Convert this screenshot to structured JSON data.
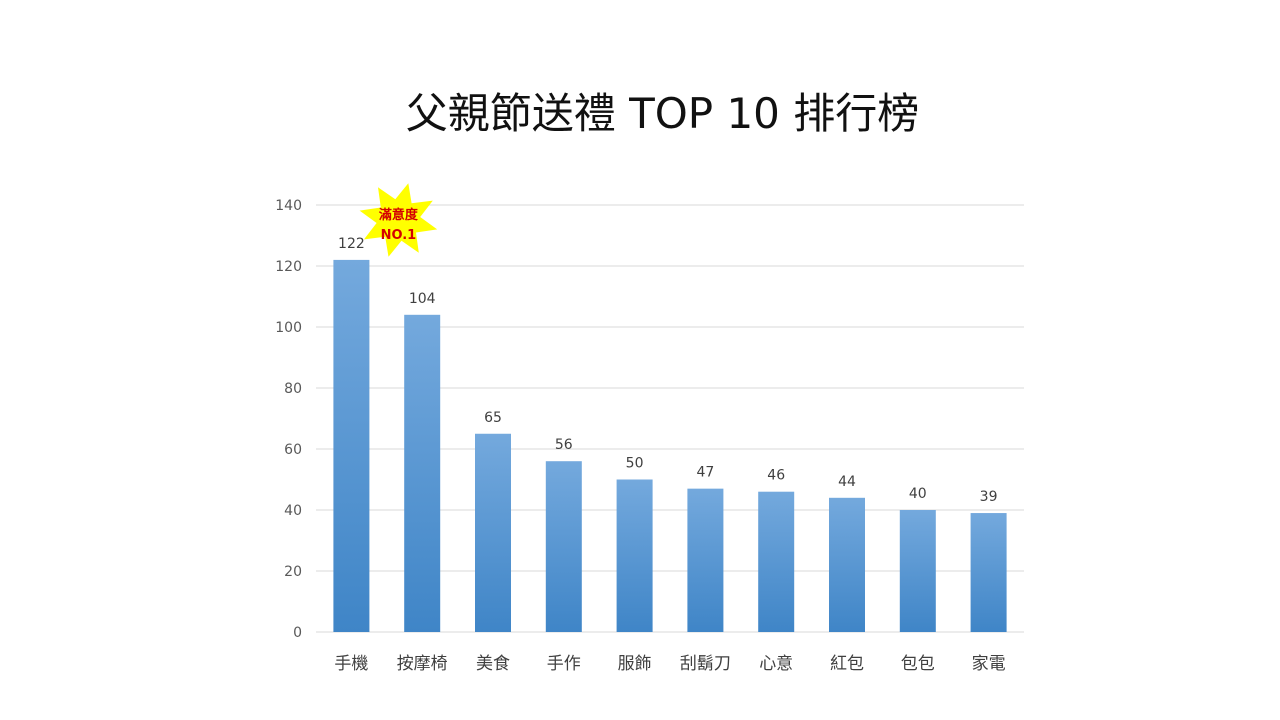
{
  "chart_data": {
    "type": "bar",
    "title": "父親節送禮 TOP 10 排行榜",
    "categories": [
      "手機",
      "按摩椅",
      "美食",
      "手作",
      "服飾",
      "刮鬍刀",
      "心意",
      "紅包",
      "包包",
      "家電"
    ],
    "values": [
      122,
      104,
      65,
      56,
      50,
      47,
      46,
      44,
      40,
      39
    ],
    "yticks": [
      "0",
      "20",
      "40",
      "60",
      "80",
      "100",
      "120",
      "140"
    ],
    "ylim": [
      0,
      140
    ],
    "grid": true,
    "legend": "none",
    "annotation": {
      "line1": "滿意度",
      "line2": "NO.1",
      "category": "手機",
      "fill": "#ffff00",
      "text_color": "#d40000"
    }
  },
  "colors": {
    "bar_top": "#74a9dd",
    "bar_bottom": "#3f85c7",
    "grid": "#d9d9d9"
  }
}
